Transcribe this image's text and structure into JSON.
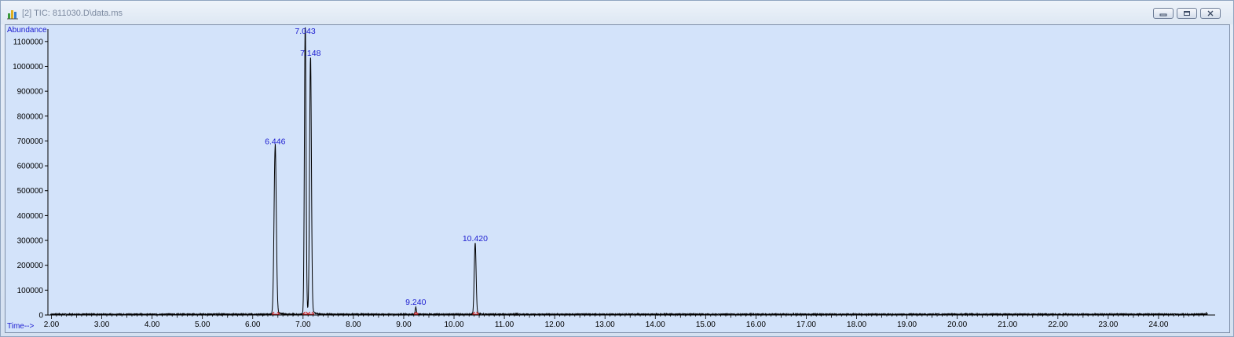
{
  "window": {
    "title": "[2] TIC: 811030.D\\data.ms",
    "icons": {
      "app": "chromatogram-app-icon",
      "minimize": "minimize-icon",
      "restore": "restore-icon",
      "close": "close-icon"
    }
  },
  "colors": {
    "plot_background": "#d3e3fa",
    "trace": "#000000",
    "label_text": "#1b1bd0",
    "integration_marker": "#d02020"
  },
  "chart_data": {
    "type": "line",
    "title": "",
    "xlabel": "Time-->",
    "ylabel": "Abundance",
    "xlim": [
      1.93,
      25.0
    ],
    "ylim": [
      0,
      1150000
    ],
    "grid": false,
    "x_ticks": [
      "2.00",
      "3.00",
      "4.00",
      "5.00",
      "6.00",
      "7.00",
      "8.00",
      "9.00",
      "10.00",
      "11.00",
      "12.00",
      "13.00",
      "14.00",
      "15.00",
      "16.00",
      "17.00",
      "18.00",
      "19.00",
      "20.00",
      "21.00",
      "22.00",
      "23.00",
      "24.00"
    ],
    "y_ticks": [
      "0",
      "100000",
      "200000",
      "300000",
      "400000",
      "500000",
      "600000",
      "700000",
      "800000",
      "900000",
      "1000000",
      "1100000"
    ],
    "peaks": [
      {
        "label": "6.446",
        "x": 6.446,
        "y": 675000,
        "width": 0.022
      },
      {
        "label": "7.043",
        "x": 7.043,
        "y": 1170000,
        "width": 0.016
      },
      {
        "label": "7.148",
        "x": 7.148,
        "y": 1030000,
        "width": 0.018
      },
      {
        "label": "9.240",
        "x": 9.24,
        "y": 28000,
        "width": 0.012
      },
      {
        "label": "10.420",
        "x": 10.42,
        "y": 285000,
        "width": 0.018
      }
    ]
  }
}
